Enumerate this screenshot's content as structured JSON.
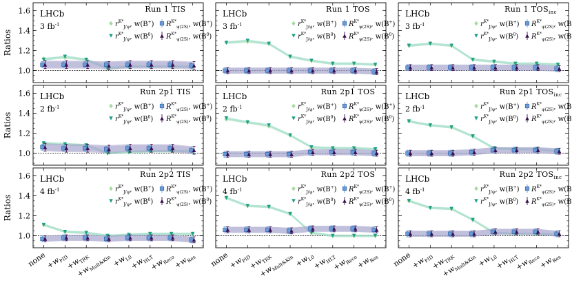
{
  "chart_data": {
    "type": "errorbar-grid",
    "ylabel": "Ratios",
    "ylim": [
      0.88,
      1.68
    ],
    "yticks": [
      "1.0",
      "1.2",
      "1.4",
      "1.6"
    ],
    "experiment": "LHCb",
    "categories": [
      "none",
      "+w_PID",
      "+w_TRK",
      "+w_Mult&Kin",
      "+w_L0",
      "+w_HLT",
      "+w_Reco",
      "+w_Res"
    ],
    "category_labels": [
      {
        "main": "none",
        "sub": ""
      },
      {
        "main": "+w",
        "sub": "PID"
      },
      {
        "main": "+w",
        "sub": "TRK"
      },
      {
        "main": "+w",
        "sub": "Mult&Kin"
      },
      {
        "main": "+w",
        "sub": "L0"
      },
      {
        "main": "+w",
        "sub": "HLT"
      },
      {
        "main": "+w",
        "sub": "Reco"
      },
      {
        "main": "+w",
        "sub": "Res"
      }
    ],
    "legend": [
      {
        "key": "rB+",
        "label": "r^{K*}_{J/ψ}, w(B+)",
        "color": "#a6dba0",
        "marker": "diamond"
      },
      {
        "key": "RB+",
        "label": "R^{K*}_{ψ(2S)}, w(B+)",
        "color": "#6a9bd8",
        "marker": "square"
      },
      {
        "key": "rB0",
        "label": "r^{K*}_{J/ψ}, w(B0)",
        "color": "#1f9e89",
        "marker": "triangle-down"
      },
      {
        "key": "RB0",
        "label": "R^{K*}_{ψ(2S)}, w(B0)",
        "color": "#3b0f4f",
        "marker": "triangle-up"
      }
    ],
    "panels": [
      {
        "run": "Run 1",
        "trig": "TIS",
        "trig_sub": "",
        "lumi": "3",
        "series": {
          "rB+": [
            1.12,
            1.13,
            1.11,
            1.03,
            1.04,
            1.04,
            1.04,
            1.04
          ],
          "RB+": [
            1.06,
            1.06,
            1.06,
            1.06,
            1.06,
            1.06,
            1.06,
            1.05
          ],
          "rB0": [
            1.11,
            1.14,
            1.11,
            1.02,
            1.04,
            1.04,
            1.04,
            1.04
          ],
          "RB0": [
            1.06,
            1.06,
            1.06,
            1.05,
            1.06,
            1.06,
            1.06,
            1.05
          ]
        },
        "err": {
          "RB+": 0.03,
          "RB0": 0.04
        }
      },
      {
        "run": "Run 1",
        "trig": "TOS",
        "trig_sub": "",
        "lumi": "3",
        "series": {
          "rB+": [
            1.28,
            1.29,
            1.27,
            1.14,
            1.1,
            1.07,
            1.07,
            1.06
          ],
          "RB+": [
            1.0,
            1.0,
            1.0,
            1.0,
            1.0,
            1.0,
            1.0,
            0.99
          ],
          "rB0": [
            1.28,
            1.3,
            1.27,
            1.14,
            1.1,
            1.07,
            1.07,
            1.06
          ],
          "RB0": [
            1.0,
            1.0,
            1.0,
            1.0,
            1.0,
            1.0,
            1.0,
            0.99
          ]
        },
        "err": {
          "RB+": 0.03,
          "RB0": 0.03
        }
      },
      {
        "run": "Run 1",
        "trig": "TOS",
        "trig_sub": "inc",
        "lumi": "3",
        "series": {
          "rB+": [
            1.25,
            1.27,
            1.25,
            1.11,
            1.09,
            1.07,
            1.07,
            1.06
          ],
          "RB+": [
            1.03,
            1.03,
            1.03,
            1.03,
            1.03,
            1.03,
            1.03,
            1.02
          ],
          "rB0": [
            1.25,
            1.27,
            1.25,
            1.11,
            1.09,
            1.07,
            1.07,
            1.06
          ],
          "RB0": [
            1.03,
            1.03,
            1.03,
            1.03,
            1.03,
            1.03,
            1.03,
            1.02
          ]
        },
        "err": {
          "RB+": 0.03,
          "RB0": 0.03
        }
      },
      {
        "run": "Run 2p1",
        "trig": "TIS",
        "trig_sub": "",
        "lumi": "2",
        "series": {
          "rB+": [
            1.1,
            1.09,
            1.08,
            1.0,
            1.01,
            1.02,
            1.02,
            1.02
          ],
          "RB+": [
            1.06,
            1.05,
            1.05,
            1.04,
            1.05,
            1.05,
            1.05,
            1.03
          ],
          "rB0": [
            1.1,
            1.09,
            1.08,
            1.0,
            1.01,
            1.02,
            1.02,
            1.02
          ],
          "RB0": [
            1.06,
            1.05,
            1.05,
            1.04,
            1.05,
            1.05,
            1.05,
            1.03
          ]
        },
        "err": {
          "RB+": 0.03,
          "RB0": 0.04
        }
      },
      {
        "run": "Run 2p1",
        "trig": "TOS",
        "trig_sub": "",
        "lumi": "2",
        "series": {
          "rB+": [
            1.34,
            1.31,
            1.27,
            1.18,
            1.06,
            1.05,
            1.05,
            1.04
          ],
          "RB+": [
            0.99,
            0.99,
            0.99,
            0.99,
            1.01,
            1.01,
            1.01,
            1.0
          ],
          "rB0": [
            1.35,
            1.31,
            1.28,
            1.18,
            1.06,
            1.05,
            1.05,
            1.04
          ],
          "RB0": [
            0.99,
            0.99,
            0.99,
            0.99,
            1.01,
            1.01,
            1.01,
            1.0
          ]
        },
        "err": {
          "RB+": 0.03,
          "RB0": 0.03
        }
      },
      {
        "run": "Run 2p1",
        "trig": "TOS",
        "trig_sub": "inc",
        "lumi": "2",
        "series": {
          "rB+": [
            1.32,
            1.28,
            1.26,
            1.17,
            1.05,
            1.04,
            1.04,
            1.02
          ],
          "RB+": [
            1.0,
            1.0,
            1.0,
            1.01,
            1.03,
            1.03,
            1.03,
            1.02
          ],
          "rB0": [
            1.32,
            1.28,
            1.26,
            1.17,
            1.05,
            1.04,
            1.04,
            1.02
          ],
          "RB0": [
            1.0,
            1.0,
            1.0,
            1.01,
            1.03,
            1.03,
            1.03,
            1.02
          ]
        },
        "err": {
          "RB+": 0.03,
          "RB0": 0.03
        }
      },
      {
        "run": "Run 2p2",
        "trig": "TIS",
        "trig_sub": "",
        "lumi": "4",
        "series": {
          "rB+": [
            1.11,
            1.04,
            1.03,
            1.0,
            1.01,
            1.02,
            1.02,
            1.02
          ],
          "RB+": [
            0.97,
            0.98,
            0.98,
            0.97,
            0.98,
            0.98,
            0.98,
            0.96
          ],
          "rB0": [
            1.11,
            1.04,
            1.03,
            1.0,
            1.01,
            1.02,
            1.02,
            1.02
          ],
          "RB0": [
            0.97,
            0.98,
            0.98,
            0.97,
            0.98,
            0.98,
            0.98,
            0.96
          ]
        },
        "err": {
          "RB+": 0.03,
          "RB0": 0.03
        }
      },
      {
        "run": "Run 2p2",
        "trig": "TOS",
        "trig_sub": "",
        "lumi": "4",
        "series": {
          "rB+": [
            1.38,
            1.3,
            1.29,
            1.22,
            1.03,
            1.0,
            1.0,
            1.0
          ],
          "RB+": [
            1.06,
            1.06,
            1.06,
            1.05,
            1.07,
            1.07,
            1.07,
            1.06
          ],
          "rB0": [
            1.38,
            1.3,
            1.29,
            1.22,
            1.03,
            1.0,
            1.0,
            1.0
          ],
          "RB0": [
            1.06,
            1.06,
            1.06,
            1.05,
            1.07,
            1.07,
            1.07,
            1.06
          ]
        },
        "err": {
          "RB+": 0.03,
          "RB0": 0.03
        }
      },
      {
        "run": "Run 2p2",
        "trig": "TOS",
        "trig_sub": "inc",
        "lumi": "4",
        "series": {
          "rB+": [
            1.35,
            1.28,
            1.27,
            1.16,
            1.03,
            1.02,
            1.02,
            1.01
          ],
          "RB+": [
            1.02,
            1.02,
            1.02,
            1.02,
            1.04,
            1.04,
            1.04,
            1.02
          ],
          "rB0": [
            1.35,
            1.28,
            1.27,
            1.16,
            1.03,
            1.02,
            1.02,
            1.01
          ],
          "RB0": [
            1.02,
            1.02,
            1.02,
            1.02,
            1.04,
            1.04,
            1.04,
            1.02
          ]
        },
        "err": {
          "RB+": 0.03,
          "RB0": 0.03
        }
      }
    ]
  }
}
